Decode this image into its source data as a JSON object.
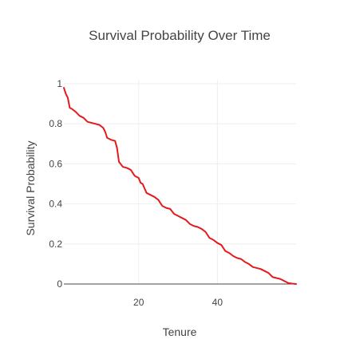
{
  "chart_data": {
    "type": "line",
    "title": "Survival Probability Over Time",
    "xlabel": "Tenure",
    "ylabel": "Survival Probability",
    "xlim": [
      1,
      60
    ],
    "ylim": [
      0,
      1.02
    ],
    "x_ticks": [
      {
        "value": 20,
        "label": "20"
      },
      {
        "value": 40,
        "label": "40"
      }
    ],
    "y_ticks": [
      {
        "value": 0,
        "label": "0"
      },
      {
        "value": 0.2,
        "label": "0.2"
      },
      {
        "value": 0.4,
        "label": "0.4"
      },
      {
        "value": 0.6,
        "label": "0.6"
      },
      {
        "value": 0.8,
        "label": "0.8"
      },
      {
        "value": 1,
        "label": "1"
      }
    ],
    "grid": true,
    "legend": "none",
    "colors": {
      "line": "#e41a1c",
      "grid": "#eeeeee",
      "zeroline": "#444444",
      "text": "#444444"
    },
    "series": [
      {
        "x": [
          1,
          1.5,
          2,
          2.5,
          3,
          4,
          5,
          6,
          7,
          8,
          10,
          11,
          11.5,
          12,
          13,
          14,
          14.5,
          15,
          16,
          17,
          18,
          19,
          20,
          20.5,
          21,
          22,
          23,
          24,
          25,
          26,
          27,
          28,
          29,
          30,
          31,
          32,
          33,
          34,
          35,
          36,
          37,
          38,
          39,
          40,
          41,
          42,
          43,
          44,
          45,
          46,
          47,
          48,
          49,
          50,
          51,
          52,
          53,
          54,
          55,
          56,
          57,
          58,
          59,
          60
        ],
        "y": [
          0.98,
          0.95,
          0.93,
          0.88,
          0.875,
          0.86,
          0.84,
          0.83,
          0.81,
          0.805,
          0.795,
          0.78,
          0.76,
          0.73,
          0.72,
          0.715,
          0.68,
          0.61,
          0.585,
          0.58,
          0.57,
          0.54,
          0.53,
          0.505,
          0.5,
          0.455,
          0.445,
          0.435,
          0.42,
          0.39,
          0.38,
          0.375,
          0.35,
          0.34,
          0.33,
          0.32,
          0.3,
          0.29,
          0.285,
          0.275,
          0.26,
          0.23,
          0.22,
          0.205,
          0.195,
          0.165,
          0.155,
          0.14,
          0.13,
          0.125,
          0.11,
          0.1,
          0.085,
          0.08,
          0.075,
          0.065,
          0.055,
          0.035,
          0.03,
          0.025,
          0.015,
          0.005,
          0.002,
          0.0
        ]
      }
    ]
  }
}
